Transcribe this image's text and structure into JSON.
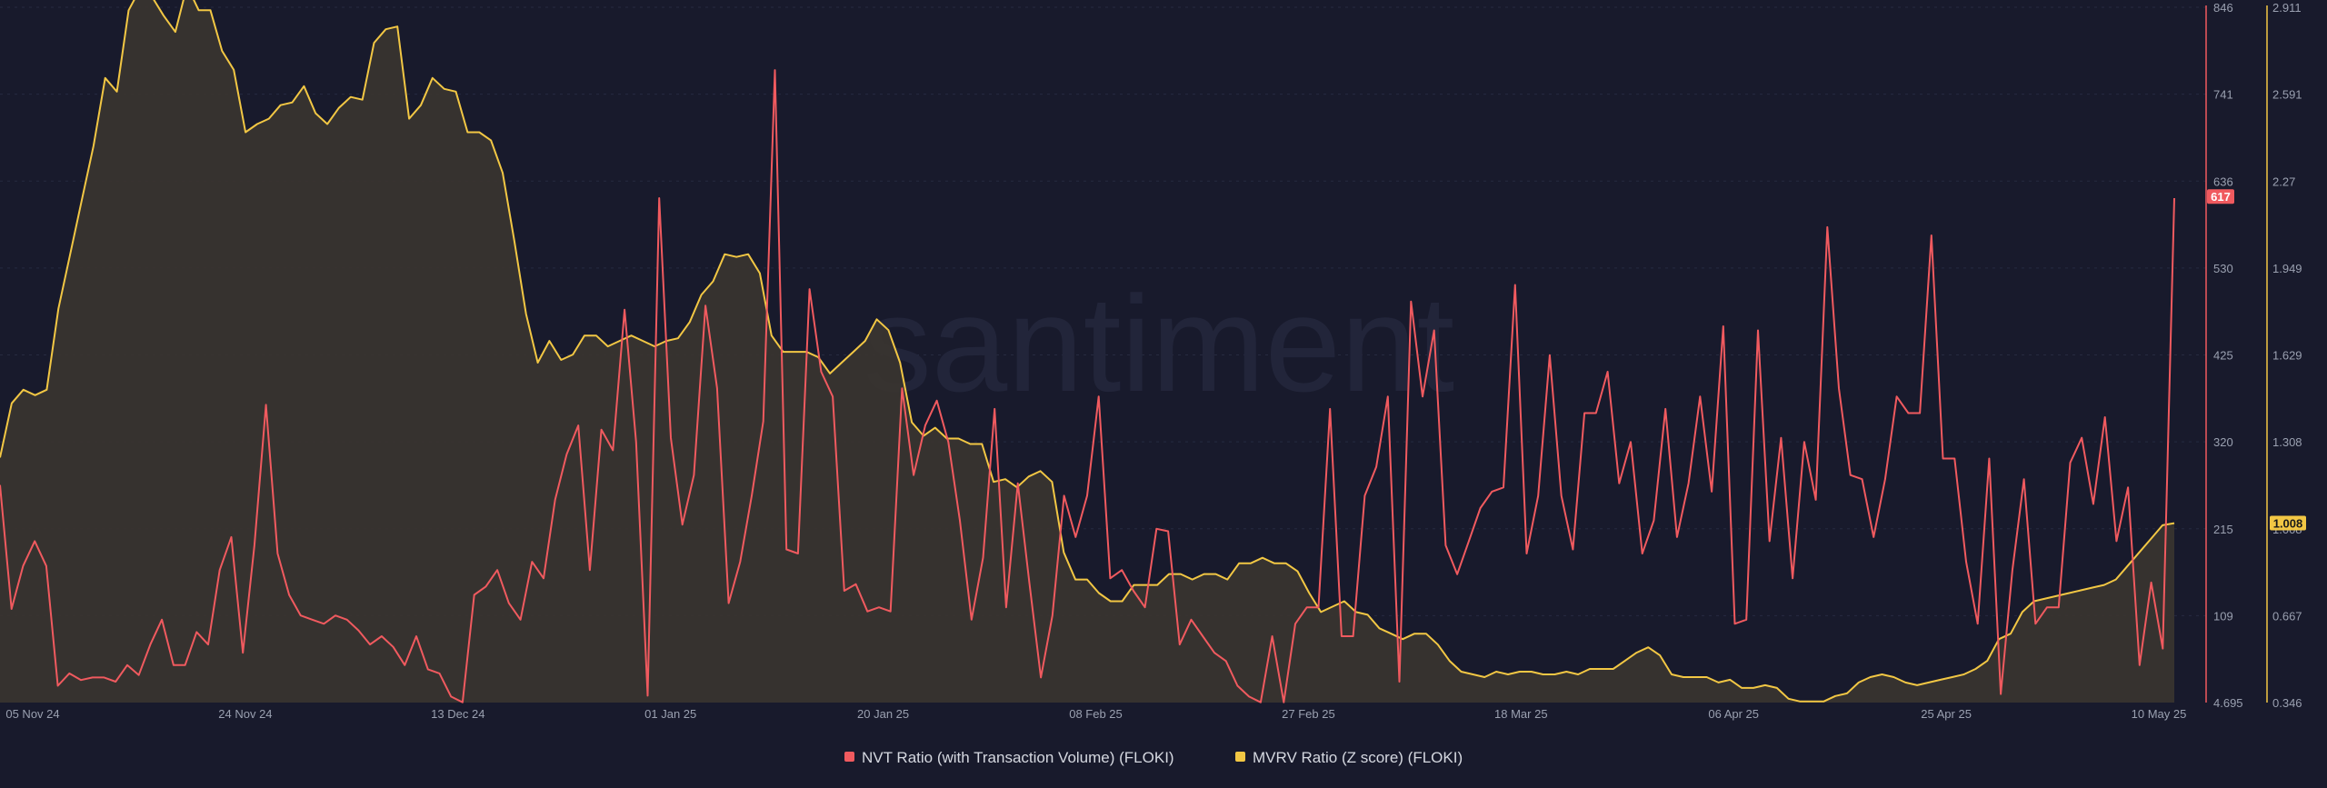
{
  "watermark": "santiment",
  "chart_data": {
    "type": "line",
    "x_ticks": [
      "05 Nov 24",
      "24 Nov 24",
      "13 Dec 24",
      "01 Jan 25",
      "20 Jan 25",
      "08 Feb 25",
      "27 Feb 25",
      "18 Mar 25",
      "06 Apr 25",
      "25 Apr 25",
      "10 May 25"
    ],
    "right_axis_nvt": {
      "ticks": [
        "846",
        "741",
        "636",
        "530",
        "425",
        "320",
        "215",
        "109",
        "4.695"
      ],
      "range": [
        4.695,
        846
      ]
    },
    "right_axis_mvrv": {
      "ticks": [
        "2.911",
        "2.591",
        "2.27",
        "1.949",
        "1.629",
        "1.308",
        "1.008",
        "0.667",
        "0.346"
      ],
      "range": [
        0.346,
        2.911
      ]
    },
    "grid": true,
    "legend_position": "bottom",
    "series": [
      {
        "name": "NVT Ratio (with Transaction Volume) (FLOKI)",
        "color": "#f05a5f",
        "axis": "right_inner",
        "last_value": "617",
        "values": [
          268,
          118,
          170,
          200,
          170,
          25,
          40,
          32,
          35,
          35,
          30,
          50,
          38,
          75,
          105,
          50,
          50,
          90,
          75,
          165,
          205,
          65,
          195,
          365,
          185,
          135,
          110,
          105,
          100,
          110,
          105,
          92,
          75,
          85,
          72,
          50,
          85,
          45,
          40,
          12,
          5,
          135,
          145,
          165,
          125,
          105,
          175,
          155,
          250,
          305,
          340,
          165,
          335,
          310,
          480,
          320,
          13,
          615,
          325,
          220,
          280,
          485,
          385,
          125,
          175,
          255,
          345,
          770,
          190,
          185,
          505,
          405,
          375,
          140,
          148,
          115,
          120,
          115,
          385,
          280,
          340,
          370,
          320,
          225,
          105,
          180,
          360,
          120,
          270,
          150,
          35,
          110,
          255,
          205,
          255,
          375,
          155,
          165,
          140,
          120,
          215,
          212,
          75,
          105,
          85,
          65,
          55,
          25,
          12,
          5,
          85,
          5,
          100,
          120,
          120,
          360,
          85,
          85,
          255,
          290,
          375,
          30,
          490,
          375,
          455,
          195,
          160,
          200,
          240,
          260,
          265,
          510,
          185,
          255,
          425,
          255,
          190,
          355,
          355,
          405,
          270,
          320,
          185,
          225,
          360,
          205,
          270,
          375,
          260,
          460,
          100,
          105,
          455,
          200,
          325,
          155,
          320,
          250,
          580,
          385,
          280,
          275,
          205,
          275,
          375,
          355,
          355,
          570,
          300,
          300,
          175,
          100,
          300,
          15,
          165,
          275,
          100,
          120,
          120,
          295,
          325,
          245,
          350,
          200,
          265,
          50,
          150,
          70,
          615
        ]
      },
      {
        "name": "MVRV Ratio (Z score) (FLOKI)",
        "color": "#f2c744",
        "axis": "right_outer",
        "last_value": "1.008",
        "values": [
          1.25,
          1.45,
          1.5,
          1.48,
          1.5,
          1.8,
          2.0,
          2.2,
          2.4,
          2.65,
          2.6,
          2.9,
          2.98,
          2.95,
          2.88,
          2.82,
          2.99,
          2.9,
          2.9,
          2.75,
          2.68,
          2.45,
          2.48,
          2.5,
          2.55,
          2.56,
          2.62,
          2.52,
          2.48,
          2.54,
          2.58,
          2.57,
          2.78,
          2.83,
          2.84,
          2.5,
          2.55,
          2.65,
          2.61,
          2.6,
          2.45,
          2.45,
          2.42,
          2.3,
          2.05,
          1.78,
          1.6,
          1.68,
          1.61,
          1.63,
          1.7,
          1.7,
          1.66,
          1.68,
          1.7,
          1.68,
          1.66,
          1.68,
          1.69,
          1.75,
          1.85,
          1.9,
          2.0,
          1.99,
          2.0,
          1.93,
          1.7,
          1.64,
          1.64,
          1.64,
          1.62,
          1.56,
          1.6,
          1.64,
          1.68,
          1.76,
          1.72,
          1.6,
          1.38,
          1.33,
          1.36,
          1.32,
          1.32,
          1.3,
          1.3,
          1.16,
          1.17,
          1.14,
          1.18,
          1.2,
          1.16,
          0.9,
          0.8,
          0.8,
          0.75,
          0.72,
          0.72,
          0.78,
          0.78,
          0.78,
          0.82,
          0.82,
          0.8,
          0.82,
          0.82,
          0.8,
          0.86,
          0.86,
          0.88,
          0.86,
          0.86,
          0.83,
          0.75,
          0.68,
          0.7,
          0.72,
          0.68,
          0.67,
          0.62,
          0.6,
          0.58,
          0.6,
          0.6,
          0.56,
          0.5,
          0.46,
          0.45,
          0.44,
          0.46,
          0.45,
          0.46,
          0.46,
          0.45,
          0.45,
          0.46,
          0.45,
          0.47,
          0.47,
          0.47,
          0.5,
          0.53,
          0.55,
          0.52,
          0.45,
          0.44,
          0.44,
          0.44,
          0.42,
          0.43,
          0.4,
          0.4,
          0.41,
          0.4,
          0.36,
          0.35,
          0.35,
          0.35,
          0.37,
          0.38,
          0.42,
          0.44,
          0.45,
          0.44,
          0.42,
          0.41,
          0.42,
          0.43,
          0.44,
          0.45,
          0.47,
          0.5,
          0.58,
          0.6,
          0.68,
          0.72,
          0.73,
          0.74,
          0.75,
          0.76,
          0.77,
          0.78,
          0.8,
          0.85,
          0.9,
          0.95,
          1.0,
          1.008
        ]
      }
    ]
  }
}
